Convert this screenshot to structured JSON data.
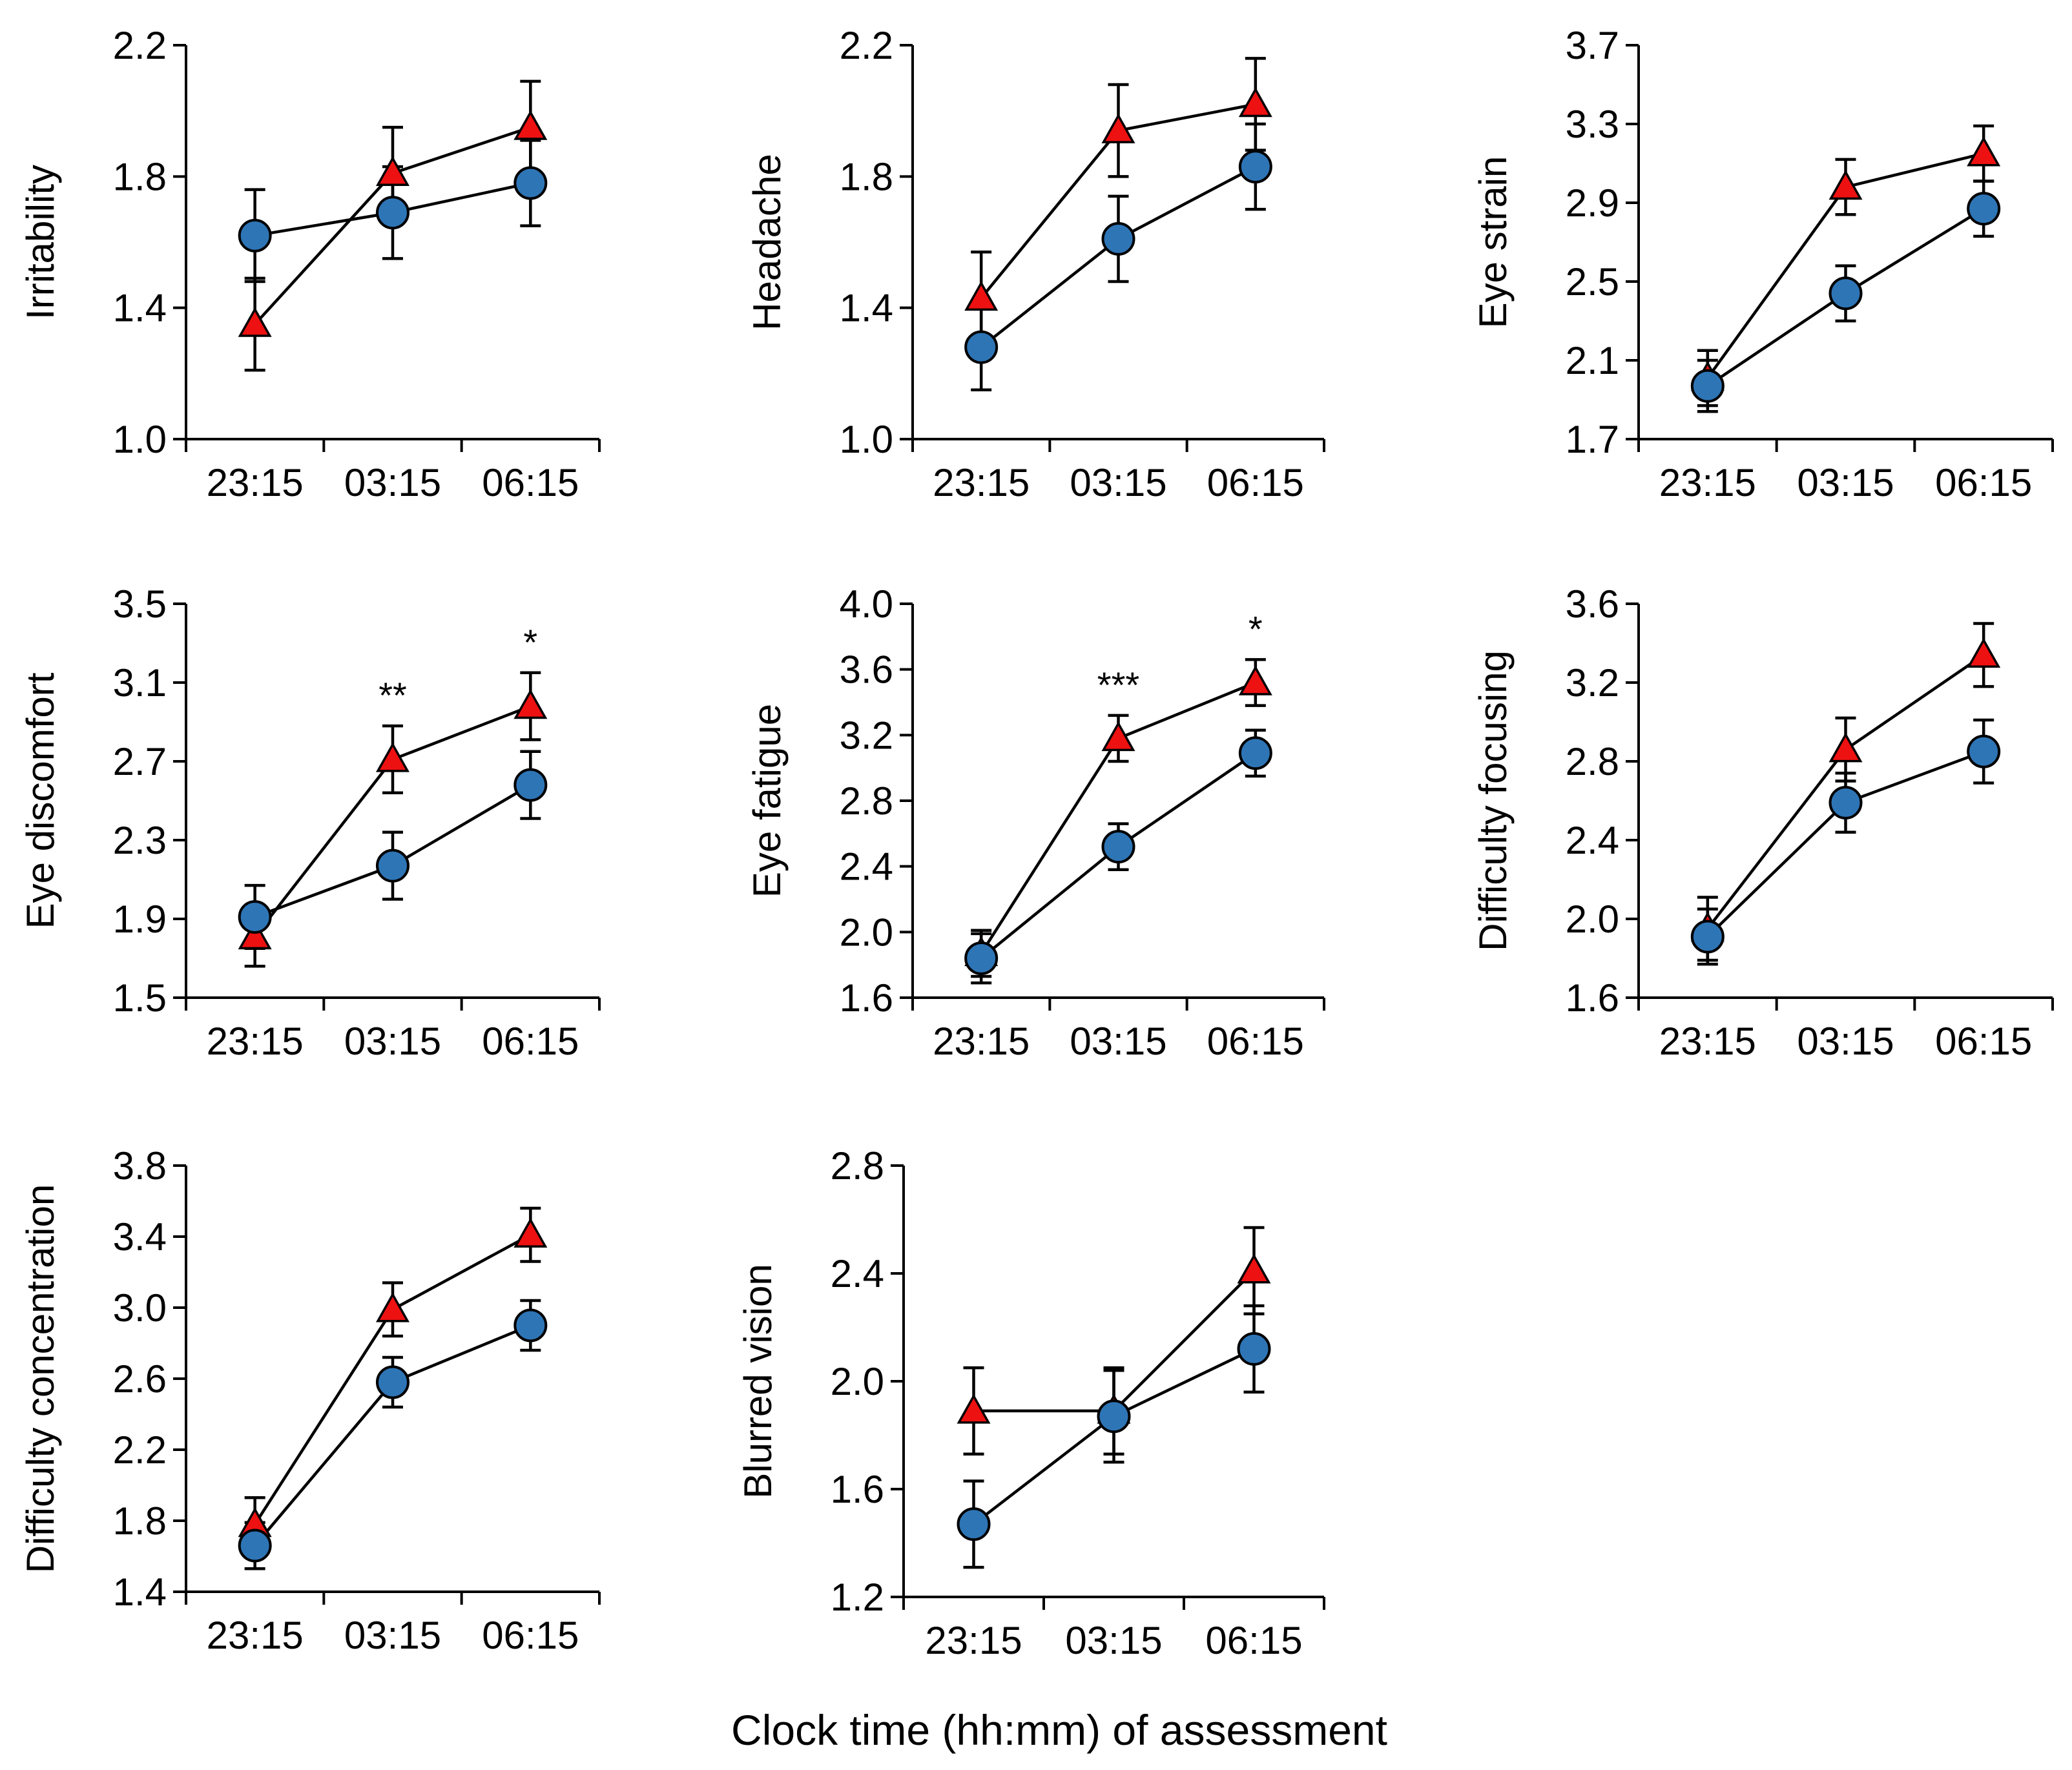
{
  "colors": {
    "circle_series": "#2e75b6",
    "triangle_series": "#ee1111",
    "lines": "#000000"
  },
  "figure": {
    "xlabel": "Clock time (hh:mm) of assessment"
  },
  "chart_data": [
    {
      "type": "line",
      "ylabel": "Irritability",
      "categories": [
        "23:15",
        "03:15",
        "06:15"
      ],
      "ylim": [
        1.0,
        2.2
      ],
      "yticks": [
        "1.0",
        "1.4",
        "1.8",
        "2.2"
      ],
      "series": [
        {
          "marker": "circle",
          "values": [
            1.62,
            1.69,
            1.78
          ],
          "errors": [
            0.14,
            0.14,
            0.13
          ]
        },
        {
          "marker": "triangle",
          "values": [
            1.35,
            1.81,
            1.95
          ],
          "errors": [
            0.14,
            0.14,
            0.14
          ]
        }
      ],
      "annotations": []
    },
    {
      "type": "line",
      "ylabel": "Headache",
      "categories": [
        "23:15",
        "03:15",
        "06:15"
      ],
      "ylim": [
        1.0,
        2.2
      ],
      "yticks": [
        "1.0",
        "1.4",
        "1.8",
        "2.2"
      ],
      "series": [
        {
          "marker": "circle",
          "values": [
            1.28,
            1.61,
            1.83
          ],
          "errors": [
            0.13,
            0.13,
            0.13
          ]
        },
        {
          "marker": "triangle",
          "values": [
            1.43,
            1.94,
            2.02
          ],
          "errors": [
            0.14,
            0.14,
            0.14
          ]
        }
      ],
      "annotations": []
    },
    {
      "type": "line",
      "ylabel": "Eye strain",
      "categories": [
        "23:15",
        "03:15",
        "06:15"
      ],
      "ylim": [
        1.7,
        3.7
      ],
      "yticks": [
        "1.7",
        "2.1",
        "2.5",
        "2.9",
        "3.3",
        "3.7"
      ],
      "series": [
        {
          "marker": "circle",
          "values": [
            1.97,
            2.44,
            2.87
          ],
          "errors": [
            0.13,
            0.14,
            0.14
          ]
        },
        {
          "marker": "triangle",
          "values": [
            2.01,
            2.98,
            3.15
          ],
          "errors": [
            0.14,
            0.14,
            0.14
          ]
        }
      ],
      "annotations": []
    },
    {
      "type": "line",
      "ylabel": "Eye discomfort",
      "categories": [
        "23:15",
        "03:15",
        "06:15"
      ],
      "ylim": [
        1.5,
        3.5
      ],
      "yticks": [
        "1.5",
        "1.9",
        "2.3",
        "2.7",
        "3.1",
        "3.5"
      ],
      "series": [
        {
          "marker": "circle",
          "values": [
            1.91,
            2.17,
            2.58
          ],
          "errors": [
            0.16,
            0.17,
            0.17
          ]
        },
        {
          "marker": "triangle",
          "values": [
            1.81,
            2.71,
            2.98
          ],
          "errors": [
            0.15,
            0.17,
            0.17
          ]
        }
      ],
      "annotations": [
        {
          "x": "03:15",
          "text": "**"
        },
        {
          "x": "06:15",
          "text": "*"
        }
      ]
    },
    {
      "type": "line",
      "ylabel": "Eye fatigue",
      "categories": [
        "23:15",
        "03:15",
        "06:15"
      ],
      "ylim": [
        1.6,
        4.0
      ],
      "yticks": [
        "1.6",
        "2.0",
        "2.4",
        "2.8",
        "3.2",
        "3.6",
        "4.0"
      ],
      "series": [
        {
          "marker": "circle",
          "values": [
            1.84,
            2.52,
            3.09
          ],
          "errors": [
            0.15,
            0.14,
            0.14
          ]
        },
        {
          "marker": "triangle",
          "values": [
            1.87,
            3.18,
            3.52
          ],
          "errors": [
            0.14,
            0.14,
            0.14
          ]
        }
      ],
      "annotations": [
        {
          "x": "03:15",
          "text": "***"
        },
        {
          "x": "06:15",
          "text": "*"
        }
      ]
    },
    {
      "type": "line",
      "ylabel": "Difficulty focusing",
      "categories": [
        "23:15",
        "03:15",
        "06:15"
      ],
      "ylim": [
        1.6,
        3.6
      ],
      "yticks": [
        "1.6",
        "2.0",
        "2.4",
        "2.8",
        "3.2",
        "3.6"
      ],
      "series": [
        {
          "marker": "circle",
          "values": [
            1.91,
            2.59,
            2.85
          ],
          "errors": [
            0.14,
            0.15,
            0.16
          ]
        },
        {
          "marker": "triangle",
          "values": [
            1.95,
            2.86,
            3.34
          ],
          "errors": [
            0.16,
            0.16,
            0.16
          ]
        }
      ],
      "annotations": []
    },
    {
      "type": "line",
      "ylabel": "Difficulty concentration",
      "categories": [
        "23:15",
        "03:15",
        "06:15"
      ],
      "ylim": [
        1.4,
        3.8
      ],
      "yticks": [
        "1.4",
        "1.8",
        "2.2",
        "2.6",
        "3.0",
        "3.4",
        "3.8"
      ],
      "series": [
        {
          "marker": "circle",
          "values": [
            1.66,
            2.58,
            2.9
          ],
          "errors": [
            0.13,
            0.14,
            0.14
          ]
        },
        {
          "marker": "triangle",
          "values": [
            1.78,
            2.99,
            3.41
          ],
          "errors": [
            0.15,
            0.15,
            0.15
          ]
        }
      ],
      "annotations": []
    },
    {
      "type": "line",
      "ylabel": "Blurred vision",
      "categories": [
        "23:15",
        "03:15",
        "06:15"
      ],
      "ylim": [
        1.2,
        2.8
      ],
      "yticks": [
        "1.2",
        "1.6",
        "2.0",
        "2.4",
        "2.8"
      ],
      "series": [
        {
          "marker": "circle",
          "values": [
            1.47,
            1.87,
            2.12
          ],
          "errors": [
            0.16,
            0.17,
            0.16
          ]
        },
        {
          "marker": "triangle",
          "values": [
            1.89,
            1.89,
            2.41
          ],
          "errors": [
            0.16,
            0.16,
            0.16
          ]
        }
      ],
      "annotations": []
    }
  ]
}
